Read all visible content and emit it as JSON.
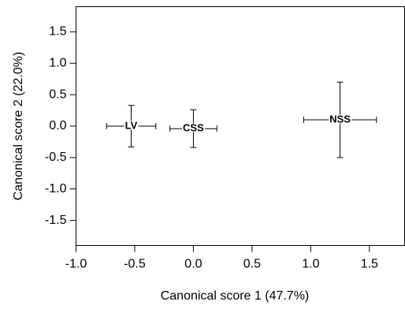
{
  "chart_data": {
    "type": "scatter",
    "xlabel": "Canonical score 1 (47.7%)",
    "ylabel": "Canonical score 2 (22.0%)",
    "categories": [
      "LV",
      "CSS",
      "NSS"
    ],
    "x": [
      -0.53,
      0.0,
      1.25
    ],
    "values": [
      0.0,
      -0.04,
      0.1
    ],
    "xerr": [
      0.21,
      0.2,
      0.31
    ],
    "yerr": [
      0.33,
      0.3,
      0.6
    ],
    "color": "#000000",
    "xlim": [
      -1.0,
      1.8
    ],
    "ylim": [
      -1.9,
      1.9
    ],
    "xticks": [
      {
        "value": -1,
        "label": "-1.0"
      },
      -0.5,
      {
        "value": 0,
        "label": "0.0"
      },
      0.5,
      {
        "value": 1,
        "label": "1.0"
      },
      1.5
    ],
    "yticks": [
      -1.5,
      {
        "value": -1,
        "label": "-1.0"
      },
      -0.5,
      {
        "value": 0,
        "label": "0.0"
      },
      0.5,
      {
        "value": 1,
        "label": "1.0"
      },
      1.5
    ]
  }
}
